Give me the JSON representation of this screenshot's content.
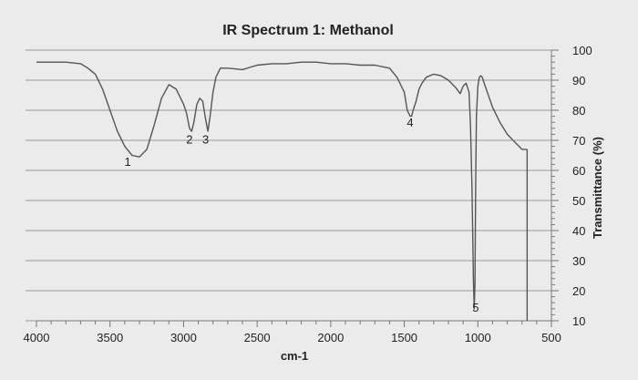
{
  "chart_data": {
    "type": "line",
    "title": "IR Spectrum 1: Methanol",
    "xlabel": "cm-1",
    "ylabel": "Transmittance (%)",
    "xlim": [
      4000,
      500
    ],
    "ylim": [
      10,
      100
    ],
    "x_axis_reversed": true,
    "x_ticks": [
      "4000",
      "3500",
      "3000",
      "2500",
      "2000",
      "1500",
      "1000",
      "500"
    ],
    "y_ticks": [
      "100",
      "90",
      "80",
      "70",
      "60",
      "50",
      "40",
      "30",
      "20",
      "10"
    ],
    "y_axis_side": "right",
    "grid": "horizontal",
    "colors": {
      "line": "#555555",
      "grid": "#9a9a9a",
      "background": "#ebebeb"
    },
    "series": [
      {
        "x": [
          4000,
          3900,
          3800,
          3700,
          3650,
          3600,
          3550,
          3500,
          3450,
          3400,
          3350,
          3300,
          3250,
          3200,
          3150,
          3100,
          3050,
          3000,
          2980,
          2960,
          2945,
          2930,
          2910,
          2890,
          2870,
          2850,
          2835,
          2820,
          2800,
          2780,
          2750,
          2700,
          2600,
          2500,
          2400,
          2300,
          2200,
          2100,
          2000,
          1900,
          1800,
          1700,
          1600,
          1550,
          1500,
          1480,
          1460,
          1450,
          1440,
          1420,
          1400,
          1380,
          1350,
          1300,
          1250,
          1200,
          1150,
          1120,
          1100,
          1080,
          1060,
          1050,
          1040,
          1035,
          1030,
          1025,
          1020,
          1015,
          1010,
          1000,
          990,
          980,
          970,
          950,
          900,
          850,
          800,
          750,
          700,
          680,
          670,
          665
        ],
        "y": [
          96,
          96,
          96,
          95.5,
          94,
          92,
          87,
          80,
          73,
          68,
          65,
          64.5,
          67,
          75,
          84,
          88.5,
          87,
          82,
          79,
          74,
          73,
          76,
          82,
          84,
          83,
          77,
          73,
          78,
          86,
          91,
          94,
          94,
          93.5,
          95,
          95.5,
          95.5,
          96,
          96,
          95.5,
          95.5,
          95,
          95,
          94,
          91,
          86,
          80,
          78,
          78,
          80,
          83,
          87,
          89,
          91,
          92,
          91.5,
          90,
          87.5,
          85.5,
          88,
          89,
          86,
          75,
          55,
          40,
          24,
          14,
          22,
          55,
          78,
          88,
          91,
          91.5,
          91,
          88,
          81,
          76,
          72,
          69.5,
          67,
          67,
          67,
          67
        ]
      }
    ],
    "annotations": [
      {
        "label": "1",
        "x": 3380,
        "y": 61.5
      },
      {
        "label": "2",
        "x": 2960,
        "y": 69
      },
      {
        "label": "3",
        "x": 2850,
        "y": 69
      },
      {
        "label": "4",
        "x": 1460,
        "y": 74.5
      },
      {
        "label": "5",
        "x": 1015,
        "y": 13
      }
    ]
  }
}
